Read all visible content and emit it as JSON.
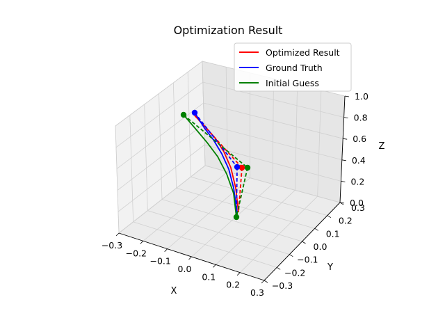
{
  "chart_data": {
    "type": "line3d",
    "title": "Optimization Result",
    "xlabel": "X",
    "ylabel": "Y",
    "zlabel": "Z",
    "xlim": [
      -0.3,
      0.3
    ],
    "ylim": [
      -0.3,
      0.3
    ],
    "zlim": [
      0.0,
      1.0
    ],
    "xticks": [
      "−0.3",
      "−0.2",
      "−0.1",
      "0.0",
      "0.1",
      "0.2",
      "0.3"
    ],
    "yticks": [
      "−0.3",
      "−0.2",
      "−0.1",
      "0.0",
      "0.1",
      "0.2",
      "0.3"
    ],
    "zticks": [
      "0.0",
      "0.2",
      "0.4",
      "0.6",
      "0.8",
      "1.0"
    ],
    "legend_position": "top-right",
    "series": [
      {
        "name": "Optimized Result",
        "color": "#ff0000",
        "curve": [
          [
            343,
            305
          ],
          [
            339,
            270
          ],
          [
            332,
            241
          ],
          [
            322,
            218
          ],
          [
            310,
            199
          ],
          [
            295,
            182
          ],
          [
            280,
            166
          ]
        ],
        "end_points": [
          [
            348,
            241
          ]
        ],
        "dashed": [
          [
            [
              280,
              166
            ],
            [
              348,
              241
            ]
          ],
          [
            [
              348,
              241
            ],
            [
              343,
              305
            ]
          ]
        ]
      },
      {
        "name": "Ground Truth",
        "color": "#0000ff",
        "curve": [
          [
            341,
            305
          ],
          [
            336,
            270
          ],
          [
            329,
            243
          ],
          [
            319,
            221
          ],
          [
            307,
            201
          ],
          [
            294,
            184
          ],
          [
            280,
            162
          ]
        ],
        "end_points": [
          [
            280,
            162
          ],
          [
            341,
            240
          ]
        ],
        "dashed": [
          [
            [
              280,
              162
            ],
            [
              341,
              240
            ]
          ],
          [
            [
              341,
              240
            ],
            [
              340,
              311
            ]
          ]
        ]
      },
      {
        "name": "Initial Guess",
        "color": "#008000",
        "curve": [
          [
            340,
            312
          ],
          [
            336,
            278
          ],
          [
            326,
            250
          ],
          [
            313,
            225
          ],
          [
            298,
            205
          ],
          [
            282,
            186
          ],
          [
            264,
            165
          ]
        ],
        "end_points": [
          [
            264,
            165
          ],
          [
            356,
            241
          ],
          [
            340,
            312
          ]
        ],
        "dashed": [
          [
            [
              264,
              165
            ],
            [
              356,
              241
            ]
          ],
          [
            [
              356,
              241
            ],
            [
              340,
              312
            ]
          ]
        ]
      }
    ]
  }
}
